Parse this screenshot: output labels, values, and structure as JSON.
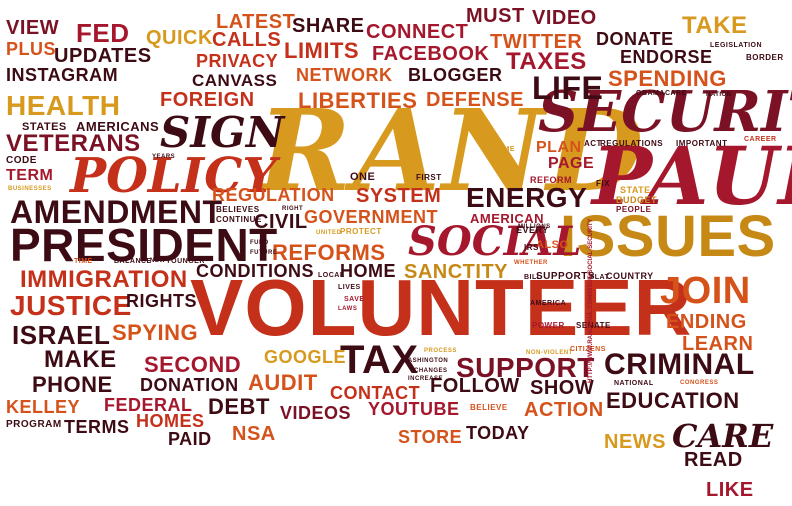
{
  "palette": {
    "dark": "#3d0b14",
    "maroon": "#7a1124",
    "crimson": "#a5172c",
    "red": "#c4301a",
    "burnt": "#d6521b",
    "orange": "#e0782a",
    "gold": "#d79a1f",
    "amber": "#c78915"
  },
  "words": [
    "RAND",
    "PAUL",
    "VOLUNTEER",
    "SECURITY",
    "ISSUES",
    "POLICY",
    "PRESIDENT",
    "SOCIAL",
    "AMENDMENT",
    "SIGN",
    "TAX",
    "HEALTH",
    "ENERGY",
    "JOIN",
    "SUPPORT",
    "CRIMINAL",
    "CARE",
    "IMMIGRATION",
    "VETERANS",
    "SPENDING",
    "LIFE",
    "LIBERTIES",
    "SANCTITY",
    "REFORMS",
    "JUSTICE",
    "ISRAEL",
    "MAKE",
    "SECOND",
    "EDUCATION",
    "DEFENSE",
    "TAXES",
    "FACEBOOK",
    "BLOGGER",
    "NETWORK",
    "LIMITS",
    "PRIVACY",
    "CANVASS",
    "FOREIGN",
    "CALLS",
    "LATEST",
    "SHARE",
    "CONNECT",
    "MUST",
    "VIDEO",
    "TWITTER",
    "DONATE",
    "TAKE",
    "ENDORSE",
    "FED",
    "QUICK",
    "UPDATES",
    "INSTAGRAM",
    "VIEW",
    "PLUS",
    "REGULATION",
    "SYSTEM",
    "GOVERNMENT",
    "CIVIL",
    "CONDITIONS",
    "HOME",
    "RIGHTS",
    "SPYING",
    "GOOGLE",
    "DONATION",
    "AUDIT",
    "PHONE",
    "KELLEY",
    "FEDERAL",
    "HOMES",
    "PAID",
    "TERMS",
    "NSA",
    "DEBT",
    "VIDEOS",
    "YOUTUBE",
    "CONTACT",
    "FOLLOW",
    "SHOW",
    "ACTION",
    "TODAY",
    "STORE",
    "NEWS",
    "READ",
    "LIKE",
    "ENDING",
    "LEARN",
    "PLAN",
    "PAGE",
    "AMERICAN",
    "TERM",
    "AMERICANS",
    "STATES",
    "CODE",
    "PROGRAM",
    "ONE",
    "EVERY",
    "ALSO",
    "FIRST",
    "REFORM",
    "STATE",
    "BUDGET",
    "FIX",
    "PEOPLE",
    "IMPORTANT",
    "CAREER",
    "LEGISLATION",
    "BORDER",
    "OBAMACARE",
    "NATION",
    "ACT",
    "REGULATIONS",
    "INCOME",
    "YEARS",
    "BUSINESSES",
    "BELIEVES",
    "CONTINUE",
    "RIGHT",
    "PROTECT",
    "UNITED",
    "FUND",
    "FUTURE",
    "TIME",
    "BALANCE",
    "NEW",
    "YOUNGER",
    "LOCAL",
    "LIVES",
    "SAVE",
    "LAWS",
    "MILLIONS",
    "IRS",
    "WHETHER",
    "BILL",
    "SUPPORTS",
    "FLAT",
    "COUNTRY",
    "AMERICA",
    "POWER",
    "SENATE",
    "PROCESS",
    "WASHINGTON",
    "CHANGES",
    "INCREASE",
    "NON-VIOLENT",
    "CITIZENS",
    "NATIONAL",
    "CONGRESS",
    "BELIEVE",
    "HTTP://WWW.RANDPAUL.COM/ISSUE/SOCIAL-SECURITY"
  ]
}
